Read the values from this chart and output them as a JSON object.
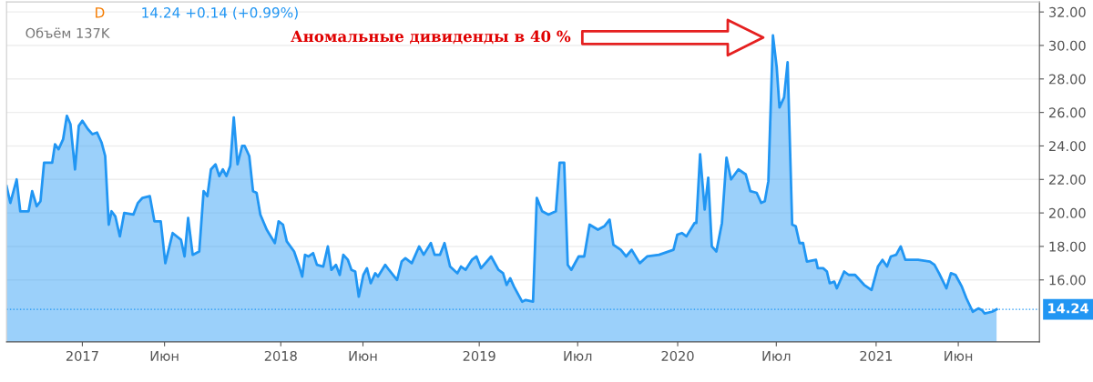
{
  "chart_data": {
    "type": "area",
    "x": [
      2016.618,
      2016.637,
      2016.669,
      2016.687,
      2016.729,
      2016.747,
      2016.77,
      2016.789,
      2016.807,
      2016.848,
      2016.862,
      2016.88,
      2016.903,
      2016.922,
      2016.94,
      2016.963,
      2016.982,
      2017.0,
      2017.028,
      2017.051,
      2017.074,
      2017.097,
      2017.115,
      2017.133,
      2017.147,
      2017.166,
      2017.189,
      2017.211,
      2017.257,
      2017.28,
      2017.303,
      2017.34,
      2017.363,
      2017.395,
      2017.418,
      2017.455,
      2017.497,
      2017.515,
      2017.533,
      2017.556,
      2017.589,
      2017.611,
      2017.63,
      2017.648,
      2017.671,
      2017.69,
      2017.708,
      2017.726,
      2017.745,
      2017.763,
      2017.782,
      2017.805,
      2017.818,
      2017.841,
      2017.86,
      2017.878,
      2017.897,
      2017.929,
      2017.97,
      2017.989,
      2018.011,
      2018.03,
      2018.067,
      2018.09,
      2018.108,
      2018.122,
      2018.14,
      2018.163,
      2018.182,
      2018.214,
      2018.237,
      2018.255,
      2018.278,
      2018.297,
      2018.315,
      2018.338,
      2018.356,
      2018.375,
      2018.393,
      2018.416,
      2018.434,
      2018.453,
      2018.476,
      2018.49,
      2018.526,
      2018.545,
      2018.586,
      2018.609,
      2018.628,
      2018.66,
      2018.697,
      2018.72,
      2018.756,
      2018.775,
      2018.802,
      2018.825,
      2018.853,
      2018.89,
      2018.908,
      2018.931,
      2018.963,
      2018.986,
      2019.009,
      2019.06,
      2019.097,
      2019.12,
      2019.138,
      2019.156,
      2019.175,
      2019.216,
      2019.234,
      2019.271,
      2019.29,
      2019.317,
      2019.349,
      2019.386,
      2019.405,
      2019.428,
      2019.446,
      2019.464,
      2019.501,
      2019.529,
      2019.556,
      2019.598,
      2019.63,
      2019.657,
      2019.676,
      2019.713,
      2019.74,
      2019.768,
      2019.809,
      2019.846,
      2019.906,
      2019.979,
      2019.998,
      2020.021,
      2020.044,
      2020.085,
      2020.094,
      2020.113,
      2020.136,
      2020.154,
      2020.172,
      2020.195,
      2020.223,
      2020.246,
      2020.269,
      2020.306,
      2020.343,
      2020.366,
      2020.398,
      2020.421,
      2020.439,
      2020.457,
      2020.48,
      2020.499,
      2020.513,
      2020.536,
      2020.554,
      2020.577,
      2020.595,
      2020.614,
      2020.632,
      2020.651,
      2020.697,
      2020.706,
      2020.733,
      2020.752,
      2020.766,
      2020.789,
      2020.802,
      2020.839,
      2020.862,
      2020.894,
      2020.94,
      2020.977,
      2021.009,
      2021.032,
      2021.055,
      2021.074,
      2021.101,
      2021.124,
      2021.147,
      2021.211,
      2021.271,
      2021.294,
      2021.317,
      2021.354,
      2021.377,
      2021.4,
      2021.432,
      2021.455,
      2021.487,
      2021.515,
      2021.533,
      2021.547,
      2021.584,
      2021.607
    ],
    "series": [
      {
        "color": "#2196f3",
        "values": [
          21.6,
          20.6,
          22.0,
          20.1,
          20.1,
          21.3,
          20.4,
          20.7,
          23.0,
          23.0,
          24.1,
          23.8,
          24.4,
          25.8,
          25.3,
          22.6,
          25.2,
          25.5,
          25.0,
          24.7,
          24.8,
          24.2,
          23.4,
          19.3,
          20.1,
          19.8,
          18.6,
          20.0,
          19.9,
          20.6,
          20.9,
          21.0,
          19.5,
          19.5,
          17.0,
          18.8,
          18.4,
          17.4,
          19.7,
          17.5,
          17.7,
          21.3,
          21.0,
          22.6,
          22.9,
          22.2,
          22.6,
          22.2,
          22.8,
          25.7,
          22.9,
          24.0,
          24.0,
          23.4,
          21.3,
          21.2,
          19.9,
          19.0,
          18.2,
          19.5,
          19.3,
          18.3,
          17.7,
          16.9,
          16.2,
          17.5,
          17.4,
          17.6,
          16.9,
          16.8,
          18.0,
          16.6,
          16.9,
          16.3,
          17.5,
          17.2,
          16.6,
          16.5,
          15.0,
          16.3,
          16.7,
          15.8,
          16.4,
          16.2,
          16.9,
          16.6,
          16.0,
          17.1,
          17.3,
          17.0,
          18.0,
          17.5,
          18.2,
          17.5,
          17.5,
          18.2,
          16.8,
          16.4,
          16.8,
          16.6,
          17.2,
          17.4,
          16.7,
          17.4,
          16.6,
          16.4,
          15.7,
          16.1,
          15.6,
          14.7,
          14.8,
          14.7,
          20.9,
          20.1,
          19.9,
          20.1,
          23.0,
          23.0,
          16.9,
          16.6,
          17.4,
          17.4,
          19.3,
          19.0,
          19.2,
          19.6,
          18.1,
          17.8,
          17.4,
          17.8,
          17.0,
          17.4,
          17.5,
          17.8,
          18.7,
          18.8,
          18.6,
          19.4,
          19.4,
          23.5,
          20.2,
          22.1,
          18.0,
          17.7,
          19.4,
          23.3,
          22.0,
          22.6,
          22.3,
          21.3,
          21.2,
          20.6,
          20.7,
          21.9,
          30.6,
          28.7,
          26.3,
          26.9,
          29.0,
          19.3,
          19.2,
          18.2,
          18.2,
          17.1,
          17.2,
          16.7,
          16.7,
          16.5,
          15.8,
          15.9,
          15.5,
          16.5,
          16.3,
          16.3,
          15.7,
          15.4,
          16.8,
          17.2,
          16.8,
          17.4,
          17.5,
          18.0,
          17.2,
          17.2,
          17.1,
          16.9,
          16.4,
          15.5,
          16.4,
          16.3,
          15.6,
          14.9,
          14.1,
          14.3,
          14.2,
          14.0,
          14.1,
          14.24
        ]
      }
    ],
    "xlim": [
      2016.618,
      2021.823
    ],
    "ylim": [
      12.3,
      32.6
    ],
    "xticks": [
      {
        "value": 2017,
        "label": "2017"
      },
      {
        "value": 2017.414,
        "label": "Июн"
      },
      {
        "value": 2018,
        "label": "2018"
      },
      {
        "value": 2018.414,
        "label": "Июн"
      },
      {
        "value": 2019,
        "label": "2019"
      },
      {
        "value": 2019.496,
        "label": "Июл"
      },
      {
        "value": 2020,
        "label": "2020"
      },
      {
        "value": 2020.497,
        "label": "Июл"
      },
      {
        "value": 2021,
        "label": "2021"
      },
      {
        "value": 2021.414,
        "label": "Июн"
      }
    ],
    "yticks": [
      {
        "value": 16,
        "label": "16.00"
      },
      {
        "value": 18,
        "label": "18.00"
      },
      {
        "value": 20,
        "label": "20.00"
      },
      {
        "value": 22,
        "label": "22.00"
      },
      {
        "value": 24,
        "label": "24.00"
      },
      {
        "value": 26,
        "label": "26.00"
      },
      {
        "value": 28,
        "label": "28.00"
      },
      {
        "value": 30,
        "label": "30.00"
      },
      {
        "value": 32,
        "label": "32.00"
      }
    ],
    "ref_lines": [
      {
        "axis": "y",
        "value": 14.24,
        "label": "14.24",
        "color": "#2196f3",
        "line_style": "dotted"
      }
    ],
    "annotations": [
      "D",
      "14.24 +0.14 (+0.99%)",
      "Объём 137K",
      "Аномальные дивиденды в 40 %"
    ],
    "grid": "y",
    "legend": false,
    "marker": "none",
    "line_style": "solid"
  }
}
